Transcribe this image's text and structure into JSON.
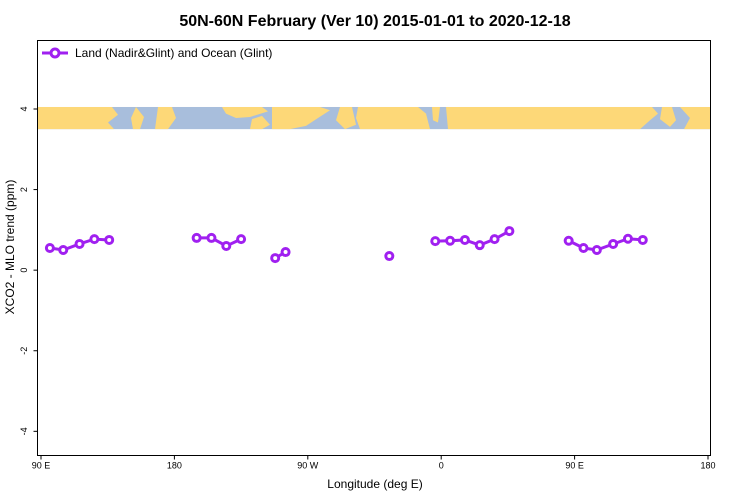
{
  "chart_data": {
    "type": "line",
    "title": "50N-60N February (Ver 10)   2015-01-01 to 2020-12-18",
    "xlabel": "Longitude (deg E)",
    "ylabel": "XCO2 - MLO trend (ppm)",
    "xlim": [
      90,
      450
    ],
    "ylim": [
      -4.6,
      5.7
    ],
    "x_ticks": [
      {
        "value": 90,
        "label": "90 E"
      },
      {
        "value": 180,
        "label": "180"
      },
      {
        "value": 270,
        "label": "90 W"
      },
      {
        "value": 360,
        "label": "0"
      },
      {
        "value": 450,
        "label": "90 E"
      },
      {
        "value": 540,
        "label": "180"
      }
    ],
    "y_ticks": [
      {
        "value": -4,
        "label": "-4"
      },
      {
        "value": -2,
        "label": "-2"
      },
      {
        "value": 0,
        "label": "0"
      },
      {
        "value": 2,
        "label": "2"
      },
      {
        "value": 4,
        "label": "4"
      }
    ],
    "legend_position": "top-left",
    "series": [
      {
        "name": "Land (Nadir&Glint) and Ocean (Glint)",
        "color": "#a020f0",
        "segments": [
          [
            [
              96,
              0.55
            ],
            [
              105,
              0.5
            ],
            [
              116,
              0.65
            ],
            [
              126,
              0.77
            ],
            [
              136,
              0.75
            ]
          ],
          [
            [
              195,
              0.8
            ],
            [
              205,
              0.8
            ],
            [
              215,
              0.6
            ],
            [
              225,
              0.77
            ]
          ],
          [
            [
              248,
              0.3
            ],
            [
              255,
              0.45
            ]
          ],
          [
            [
              325,
              0.35
            ]
          ],
          [
            [
              356,
              0.72
            ],
            [
              366,
              0.73
            ],
            [
              376,
              0.75
            ],
            [
              386,
              0.62
            ],
            [
              396,
              0.77
            ],
            [
              406,
              0.97
            ]
          ],
          [
            [
              446,
              0.73
            ],
            [
              456,
              0.55
            ],
            [
              465,
              0.5
            ],
            [
              476,
              0.65
            ],
            [
              486,
              0.78
            ],
            [
              496,
              0.75
            ]
          ]
        ]
      }
    ],
    "map_strip": {
      "y_range": [
        3.5,
        4.05
      ],
      "ocean_color": "#a8bedc",
      "land_color": "#fdd878"
    }
  }
}
